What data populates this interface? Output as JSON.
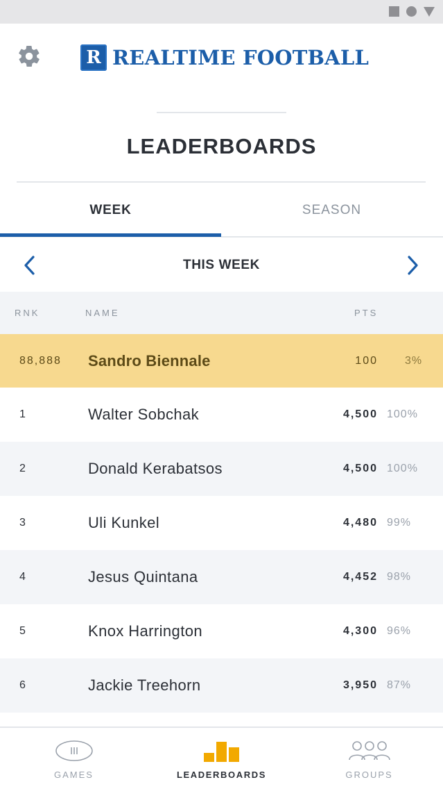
{
  "app": {
    "logo_letter": "R",
    "logo_text": "REALTIME FOOTBALL",
    "brand_color": "#1c5ea9",
    "accent_color": "#f2a900",
    "highlight_row_color": "#f7d98f"
  },
  "header": {
    "settings_icon": "gear-icon",
    "title": "LEADERBOARDS"
  },
  "tabs": [
    {
      "label": "WEEK",
      "active": true
    },
    {
      "label": "SEASON",
      "active": false
    }
  ],
  "week_nav": {
    "label": "THIS WEEK",
    "prev_icon": "chevron-left-icon",
    "next_icon": "chevron-right-icon"
  },
  "table": {
    "columns": {
      "rank": "RNK",
      "name": "NAME",
      "points": "PTS"
    },
    "current_user": {
      "rank": "88,888",
      "name": "Sandro Biennale",
      "points": "100",
      "percent": "3%"
    },
    "rows": [
      {
        "rank": "1",
        "name": "Walter Sobchak",
        "points": "4,500",
        "percent": "100%"
      },
      {
        "rank": "2",
        "name": "Donald Kerabatsos",
        "points": "4,500",
        "percent": "100%"
      },
      {
        "rank": "3",
        "name": "Uli Kunkel",
        "points": "4,480",
        "percent": "99%"
      },
      {
        "rank": "4",
        "name": "Jesus Quintana",
        "points": "4,452",
        "percent": "98%"
      },
      {
        "rank": "5",
        "name": "Knox Harrington",
        "points": "4,300",
        "percent": "96%"
      },
      {
        "rank": "6",
        "name": "Jackie Treehorn",
        "points": "3,950",
        "percent": "87%"
      }
    ]
  },
  "bottom_nav": [
    {
      "label": "GAMES",
      "icon": "football-icon",
      "active": false
    },
    {
      "label": "LEADERBOARDS",
      "icon": "bar-chart-icon",
      "active": true
    },
    {
      "label": "GROUPS",
      "icon": "people-icon",
      "active": false
    }
  ]
}
